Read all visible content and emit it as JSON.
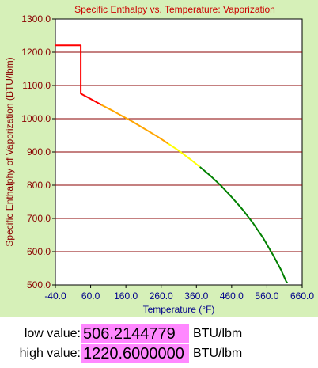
{
  "chart_data": {
    "type": "line",
    "title": "Specific Enthalpy vs. Temperature: Vaporization",
    "xlabel": "Temperature (°F)",
    "ylabel": "Specific Enthalphy of Vaporization (BTU/lbm)",
    "xlim": [
      -40,
      660
    ],
    "ylim": [
      500,
      1300
    ],
    "x_ticks": [
      "-40.0",
      "60.0",
      "160.0",
      "260.0",
      "360.0",
      "460.0",
      "560.0",
      "660.0"
    ],
    "x_tick_values": [
      -40,
      60,
      160,
      260,
      360,
      460,
      560,
      660
    ],
    "y_ticks": [
      "500.0",
      "600.0",
      "700.0",
      "800.0",
      "900.0",
      "1000.0",
      "1100.0",
      "1200.0",
      "1300.0"
    ],
    "y_tick_values": [
      500,
      600,
      700,
      800,
      900,
      1000,
      1100,
      1200,
      1300
    ],
    "grid": "horizontal",
    "series": [
      {
        "color": "#ff0000",
        "points": [
          [
            -40,
            1220.6
          ],
          [
            32,
            1220.6
          ],
          [
            32,
            1075.5
          ],
          [
            40,
            1071
          ],
          [
            60,
            1059.5
          ],
          [
            90,
            1042
          ]
        ]
      },
      {
        "color": "#ffa500",
        "points": [
          [
            90,
            1042
          ],
          [
            120,
            1025.5
          ],
          [
            150,
            1007.5
          ],
          [
            180,
            990.5
          ],
          [
            212,
            970.3
          ],
          [
            250,
            946
          ],
          [
            280,
            925
          ]
        ]
      },
      {
        "color": "#ffff00",
        "points": [
          [
            280,
            925
          ],
          [
            310,
            904
          ],
          [
            340,
            880
          ],
          [
            370,
            855
          ]
        ]
      },
      {
        "color": "#008000",
        "points": [
          [
            370,
            855
          ],
          [
            400,
            828
          ],
          [
            430,
            798
          ],
          [
            460,
            764
          ],
          [
            490,
            728
          ],
          [
            520,
            687
          ],
          [
            550,
            640
          ],
          [
            580,
            585
          ],
          [
            600,
            545
          ],
          [
            615,
            510
          ],
          [
            618,
            506.2
          ]
        ]
      }
    ]
  },
  "readout": {
    "low_label": "low value:",
    "low_value": "506.2144779",
    "high_label": "high value:",
    "high_value": "1220.6000000",
    "unit": "BTU/lbm"
  },
  "colors": {
    "panel_bg": "#d6f0b8",
    "plot_bg": "#ffffff",
    "title": "#cc0000",
    "axis_text": "#8b0000",
    "xaxis_text": "#00008b",
    "grid": "#8b0000",
    "value_bg": "#ff88ff"
  }
}
